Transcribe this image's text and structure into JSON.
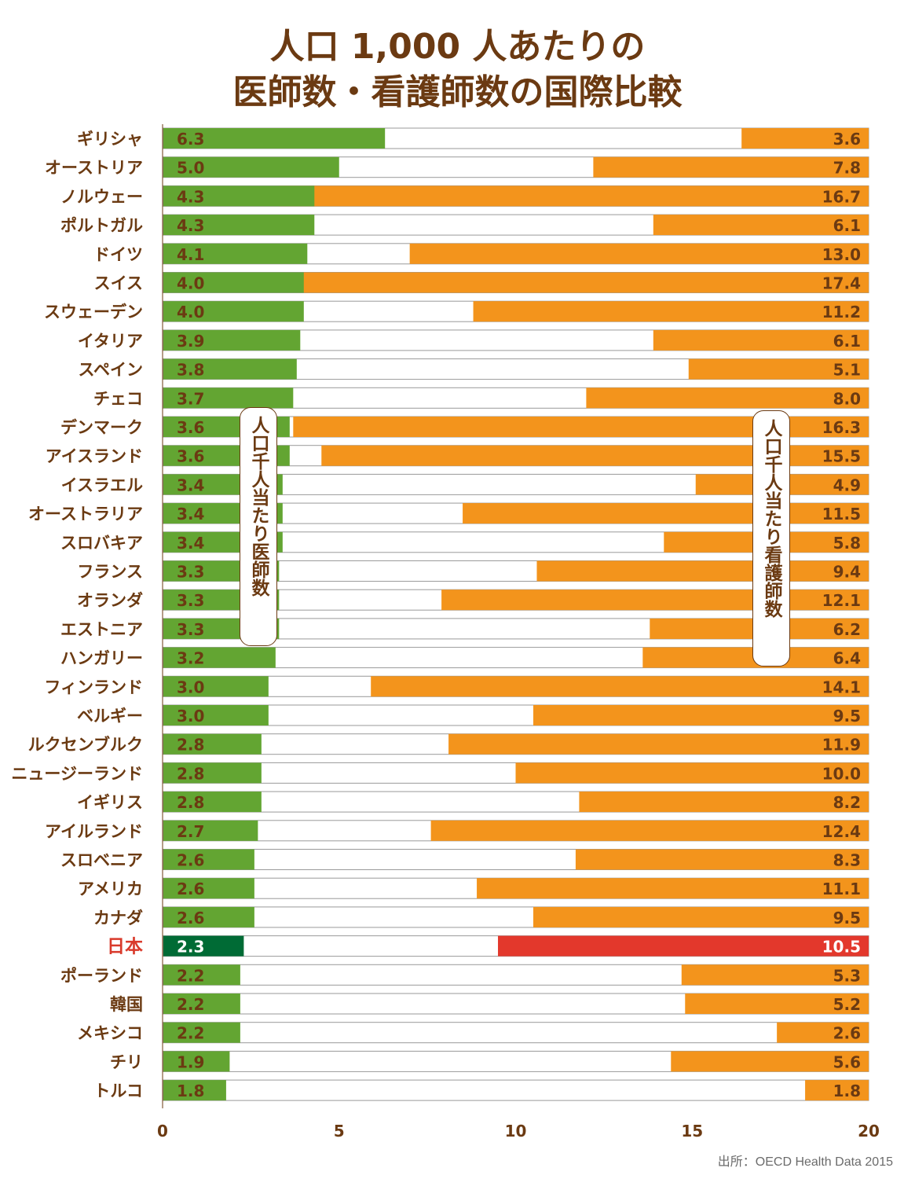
{
  "title": {
    "line1": "人口 1,000 人あたりの",
    "line2": "医師数・看護師数の国際比較"
  },
  "annotations": {
    "doctor_label": "人口千人当たり医師数",
    "nurse_label": "人口千人当たり看護師数"
  },
  "source": "出所：OECD Health Data 2015",
  "colors": {
    "doctor": "#63a532",
    "doctor_highlight": "#006b35",
    "nurse": "#f3941c",
    "nurse_highlight": "#e3382c",
    "text": "#6b3a12",
    "highlight_text": "#d93a2b"
  },
  "chart_data": {
    "type": "bar",
    "orientation": "horizontal",
    "xlim": [
      0,
      20
    ],
    "xticks": [
      0,
      5,
      10,
      15,
      20
    ],
    "highlight": "日本",
    "categories": [
      "ギリシャ",
      "オーストリア",
      "ノルウェー",
      "ポルトガル",
      "ドイツ",
      "スイス",
      "スウェーデン",
      "イタリア",
      "スペイン",
      "チェコ",
      "デンマーク",
      "アイスランド",
      "イスラエル",
      "オーストラリア",
      "スロバキア",
      "フランス",
      "オランダ",
      "エストニア",
      "ハンガリー",
      "フィンランド",
      "ベルギー",
      "ルクセンブルク",
      "ニュージーランド",
      "イギリス",
      "アイルランド",
      "スロベニア",
      "アメリカ",
      "カナダ",
      "日本",
      "ポーランド",
      "韓国",
      "メキシコ",
      "チリ",
      "トルコ"
    ],
    "series": [
      {
        "name": "医師数",
        "anchor": "left",
        "values": [
          6.3,
          5.0,
          4.3,
          4.3,
          4.1,
          4.0,
          4.0,
          3.9,
          3.8,
          3.7,
          3.6,
          3.6,
          3.4,
          3.4,
          3.4,
          3.3,
          3.3,
          3.3,
          3.2,
          3.0,
          3.0,
          2.8,
          2.8,
          2.8,
          2.7,
          2.6,
          2.6,
          2.6,
          2.3,
          2.2,
          2.2,
          2.2,
          1.9,
          1.8
        ]
      },
      {
        "name": "看護師数",
        "anchor": "right",
        "values": [
          3.6,
          7.8,
          16.7,
          6.1,
          13.0,
          17.4,
          11.2,
          6.1,
          5.1,
          8.0,
          16.3,
          15.5,
          4.9,
          11.5,
          5.8,
          9.4,
          12.1,
          6.2,
          6.4,
          14.1,
          9.5,
          11.9,
          10.0,
          8.2,
          12.4,
          8.3,
          11.1,
          9.5,
          10.5,
          5.3,
          5.2,
          2.6,
          5.6,
          1.8
        ]
      }
    ]
  }
}
